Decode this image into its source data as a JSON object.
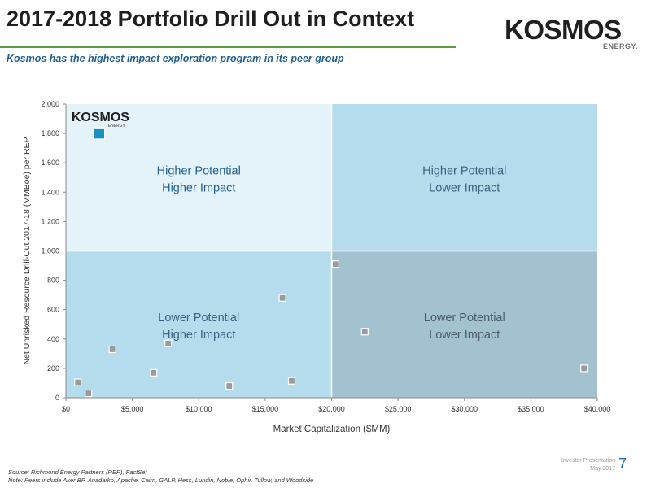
{
  "header": {
    "title": "2017-2018 Portfolio Drill Out in Context",
    "subtitle": "Kosmos has the highest impact exploration program in its peer group"
  },
  "logo": {
    "wordmark": "KOSMOS",
    "tagline": "ENERGY."
  },
  "footer": {
    "source": "Source: Richmond Energy Partners (REP), FactSet",
    "note": "Note: Peers include Aker BP, Anadarko, Apache, Cairn, GALP, Hess, Lundin, Noble, Ophir, Tullow, and Woodside",
    "presentation_label": "Investor Presentation",
    "date": "May 2017",
    "page_number": "7"
  },
  "chart_data": {
    "type": "scatter",
    "xlabel": "Market Capitalization ($MM)",
    "ylabel": "Net Unrisked Resource Drill-Out 2017-18 (MMBoe) per REP",
    "xlim": [
      0,
      40000
    ],
    "ylim": [
      0,
      2000
    ],
    "x_ticks": [
      0,
      5000,
      10000,
      15000,
      20000,
      25000,
      30000,
      35000,
      40000
    ],
    "x_tick_labels": [
      "$0",
      "$5,000",
      "$10,000",
      "$15,000",
      "$20,000",
      "$25,000",
      "$30,000",
      "$35,000",
      "$40,000"
    ],
    "y_ticks": [
      0,
      200,
      400,
      600,
      800,
      1000,
      1200,
      1400,
      1600,
      1800,
      2000
    ],
    "y_tick_labels": [
      "0",
      "200",
      "400",
      "600",
      "800",
      "1,000",
      "1,200",
      "1,400",
      "1,600",
      "1,800",
      "2,000"
    ],
    "quadrant_split": {
      "x": 20000,
      "y": 1000
    },
    "quadrants": [
      {
        "position": "top-left",
        "line1": "Higher Potential",
        "line2": "Higher Impact",
        "fill": "#e4f2fa",
        "text_color": "#1f5f8f"
      },
      {
        "position": "top-right",
        "line1": "Higher Potential",
        "line2": "Lower Impact",
        "fill": "#b5dced",
        "text_color": "#3f5f7f"
      },
      {
        "position": "bottom-left",
        "line1": "Lower Potential",
        "line2": "Higher Impact",
        "fill": "#b5dced",
        "text_color": "#3f5f7f"
      },
      {
        "position": "bottom-right",
        "line1": "Lower Potential",
        "line2": "Lower Impact",
        "fill": "#a3c2cf",
        "text_color": "#4a5a66"
      }
    ],
    "highlight": {
      "x": 2500,
      "y": 1800,
      "logo_text": "KOSMOS",
      "logo_sub": "ENERGY",
      "color": "#1a8fc4"
    },
    "peers": [
      {
        "x": 900,
        "y": 105
      },
      {
        "x": 1700,
        "y": 30
      },
      {
        "x": 3500,
        "y": 330
      },
      {
        "x": 6600,
        "y": 170
      },
      {
        "x": 7700,
        "y": 370
      },
      {
        "x": 12300,
        "y": 80
      },
      {
        "x": 16300,
        "y": 680
      },
      {
        "x": 17000,
        "y": 115
      },
      {
        "x": 20300,
        "y": 910
      },
      {
        "x": 22500,
        "y": 450
      },
      {
        "x": 39000,
        "y": 200
      }
    ],
    "colors": {
      "peer": "#9a9a9a",
      "peer_border": "#6f6f6f",
      "gridline": "#ffffff"
    }
  }
}
